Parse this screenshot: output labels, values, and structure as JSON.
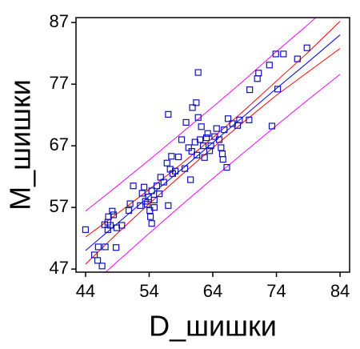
{
  "chart_data": {
    "type": "scatter",
    "x_label": "D_шишки",
    "y_label": "M_шишки",
    "xlim": [
      42.5,
      85.5
    ],
    "ylim": [
      46.5,
      87.8
    ],
    "xticks": [
      44,
      54,
      64,
      74,
      84
    ],
    "yticks": [
      47,
      57,
      67,
      77,
      87
    ],
    "series": [
      {
        "type": "scatter",
        "color": "#1010c0",
        "x": [
          44,
          45.4,
          45.9,
          46.6,
          46,
          47.1,
          48.8,
          47,
          47.5,
          47.6,
          48.2,
          48.4,
          47.5,
          47.9,
          48.9,
          49.7,
          50.8,
          51,
          51.5,
          52.6,
          52.9,
          53.2,
          53.4,
          53.7,
          53.9,
          54.4,
          54.1,
          54.2,
          54.4,
          54.8,
          54.8,
          55.2,
          55.6,
          55.8,
          56.3,
          56.8,
          57,
          57,
          57.3,
          57.5,
          57.7,
          58.1,
          58.6,
          59.1,
          59.6,
          59.8,
          60.2,
          60.5,
          60.7,
          60.8,
          61.2,
          61.4,
          61.5,
          61.7,
          61.7,
          62,
          62.2,
          62.5,
          62.7,
          63,
          63.2,
          63.5,
          63.7,
          64.3,
          64.6,
          65,
          65.3,
          65.5,
          65.6,
          65.8,
          66.2,
          66.4,
          67.1,
          67.9,
          68.2,
          69.7,
          69.8,
          71,
          71.2,
          72.9,
          73.3,
          73.9,
          74.2,
          75.1,
          77.3,
          78.8
        ],
        "values": [
          53.4,
          49.3,
          48.4,
          47.5,
          50.6,
          50.6,
          50.5,
          54.2,
          54.6,
          55.5,
          56.4,
          55.8,
          53.4,
          54.1,
          53.7,
          54.1,
          56.5,
          57.6,
          60.5,
          57.3,
          59.3,
          60.3,
          58,
          57.5,
          58.7,
          59.7,
          56.5,
          55.5,
          54.4,
          57,
          58.2,
          60.5,
          59.2,
          61.9,
          61.1,
          64.2,
          57.3,
          72.1,
          63.2,
          65.3,
          62.5,
          62.9,
          65.2,
          68,
          63.3,
          70.8,
          66.7,
          61.5,
          66.1,
          73.2,
          67.6,
          74,
          65.5,
          71.6,
          78.9,
          68,
          70.1,
          67,
          65.1,
          68.3,
          69,
          66.2,
          67,
          68.5,
          69.8,
          68,
          66.7,
          65.7,
          64.8,
          69.6,
          63.5,
          71.4,
          70.6,
          70.3,
          71.2,
          71.2,
          76.1,
          77.9,
          78.8,
          80.1,
          70.2,
          81.9,
          76.2,
          81.9,
          81.1,
          82.9
        ]
      },
      {
        "type": "line",
        "color": "#0000ff",
        "x": [
          44,
          49,
          54,
          59,
          64,
          69,
          74,
          79,
          84
        ],
        "values": [
          50,
          54.4,
          58.8,
          63.1,
          67.5,
          71.9,
          76.3,
          80.6,
          85
        ]
      },
      {
        "type": "line",
        "color": "#ff0000",
        "x": [
          44,
          49,
          54,
          59,
          64,
          69,
          74,
          79,
          84
        ],
        "values": [
          52.2,
          56.0,
          59.9,
          64.0,
          68.3,
          72.8,
          77.5,
          82.2,
          87.2
        ]
      },
      {
        "type": "line",
        "color": "#ff0000",
        "x": [
          44,
          49,
          54,
          59,
          64,
          69,
          74,
          79,
          84
        ],
        "values": [
          47.8,
          52.8,
          57.6,
          62.2,
          66.7,
          71.0,
          75.2,
          79.0,
          82.8
        ]
      },
      {
        "type": "line",
        "color": "#ff00ff",
        "x": [
          44,
          49,
          54,
          59,
          64,
          69,
          74,
          79,
          84
        ],
        "values": [
          56.4,
          60.5,
          64.7,
          69.0,
          73.3,
          77.7,
          82.3,
          86.7,
          91.4
        ]
      },
      {
        "type": "line",
        "color": "#ff00ff",
        "x": [
          44,
          49,
          54,
          59,
          64,
          69,
          74,
          79,
          84
        ],
        "values": [
          43.6,
          48.2,
          52.8,
          57.3,
          61.7,
          66.0,
          70.3,
          74.5,
          78.6
        ]
      }
    ]
  }
}
